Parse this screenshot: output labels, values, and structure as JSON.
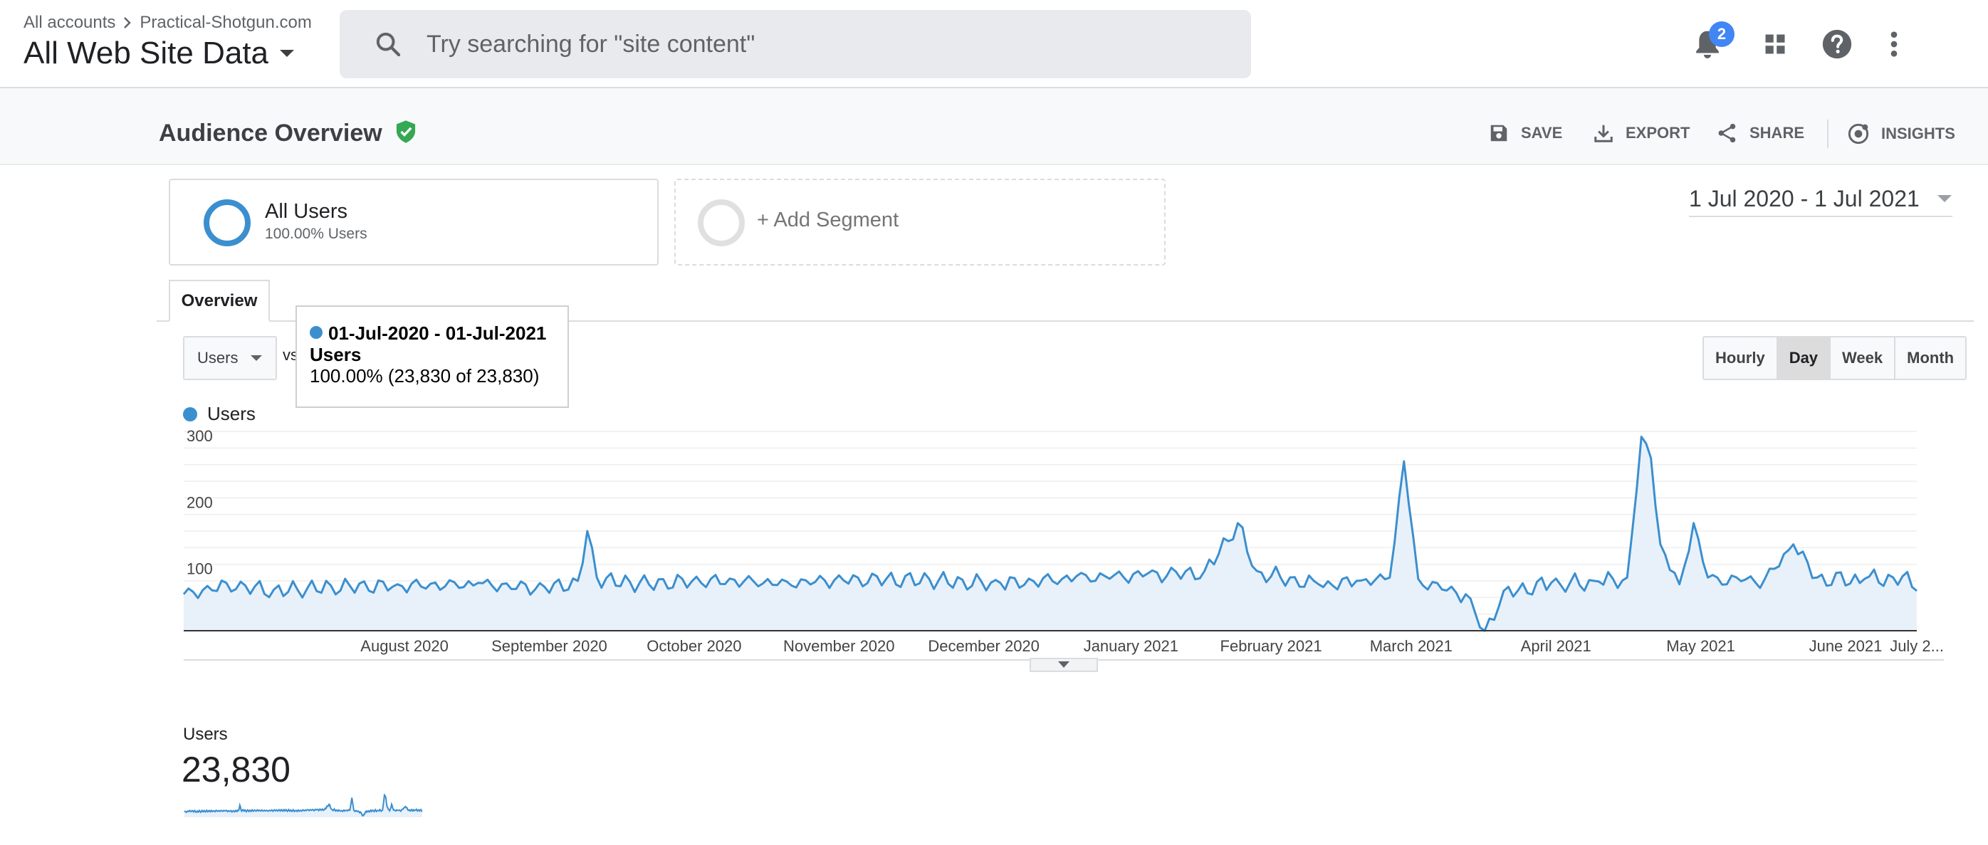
{
  "topbar": {
    "breadcrumb": {
      "account": "All accounts",
      "property": "Practical-Shotgun.com"
    },
    "view": "All Web Site Data",
    "search": {
      "placeholder": "Try searching for \"site content\"",
      "value": ""
    },
    "notifications_count": "2",
    "icons": [
      "bell-icon",
      "apps-grid-icon",
      "help-icon",
      "more-vert-icon"
    ]
  },
  "header": {
    "title": "Audience Overview",
    "actions": {
      "save": "SAVE",
      "export": "EXPORT",
      "share": "SHARE",
      "insights": "INSIGHTS"
    }
  },
  "segments": {
    "primary": {
      "name": "All Users",
      "detail": "100.00% Users"
    },
    "add_label": "+ Add Segment"
  },
  "date_range": "1 Jul 2020 - 1 Jul 2021",
  "tabs": {
    "overview": "Overview"
  },
  "controls": {
    "metric": "Users",
    "vs": "vs",
    "granularity": [
      "Hourly",
      "Day",
      "Week",
      "Month"
    ],
    "active_granularity": "Day"
  },
  "tooltip": {
    "range": "01-Jul-2020 - 01-Jul-2021",
    "metric": "Users",
    "value": "100.00% (23,830 of 23,830)"
  },
  "legend": {
    "series": "Users"
  },
  "scorecard": {
    "label": "Users",
    "value": "23,830"
  },
  "colors": {
    "line": "#3b8fcf",
    "fill": "#e8f1fa",
    "accent": "#4285f4",
    "verified": "#34a853"
  },
  "chart_data": {
    "type": "area",
    "x_start": "2020-07-01",
    "x_end": "2021-07-01",
    "ylim": [
      0,
      300
    ],
    "yticks": [
      100,
      200,
      300
    ],
    "x_tick_labels": [
      "August 2020",
      "September 2020",
      "October 2020",
      "November 2020",
      "December 2020",
      "January 2021",
      "February 2021",
      "March 2021",
      "April 2021",
      "May 2021",
      "June 2021",
      "July 2..."
    ],
    "grid": true,
    "legend": "top-left",
    "series": [
      {
        "name": "Users",
        "key_points": [
          [
            "2020-07-01",
            55
          ],
          [
            "2020-07-10",
            72
          ],
          [
            "2020-07-20",
            62
          ],
          [
            "2020-08-01",
            68
          ],
          [
            "2020-08-15",
            70
          ],
          [
            "2020-09-01",
            72
          ],
          [
            "2020-09-15",
            66
          ],
          [
            "2020-09-22",
            75
          ],
          [
            "2020-09-24",
            150
          ],
          [
            "2020-09-26",
            80
          ],
          [
            "2020-10-05",
            72
          ],
          [
            "2020-10-20",
            78
          ],
          [
            "2020-11-05",
            74
          ],
          [
            "2020-11-20",
            80
          ],
          [
            "2020-12-05",
            78
          ],
          [
            "2020-12-20",
            72
          ],
          [
            "2021-01-05",
            82
          ],
          [
            "2021-01-20",
            86
          ],
          [
            "2021-02-01",
            90
          ],
          [
            "2021-02-08",
            162
          ],
          [
            "2021-02-12",
            90
          ],
          [
            "2021-02-25",
            70
          ],
          [
            "2021-03-05",
            75
          ],
          [
            "2021-03-12",
            80
          ],
          [
            "2021-03-15",
            255
          ],
          [
            "2021-03-18",
            78
          ],
          [
            "2021-03-28",
            55
          ],
          [
            "2021-04-01",
            0
          ],
          [
            "2021-04-05",
            60
          ],
          [
            "2021-04-15",
            72
          ],
          [
            "2021-04-25",
            74
          ],
          [
            "2021-05-01",
            80
          ],
          [
            "2021-05-04",
            292
          ],
          [
            "2021-05-06",
            260
          ],
          [
            "2021-05-08",
            130
          ],
          [
            "2021-05-12",
            70
          ],
          [
            "2021-05-15",
            162
          ],
          [
            "2021-05-18",
            80
          ],
          [
            "2021-05-30",
            78
          ],
          [
            "2021-06-05",
            130
          ],
          [
            "2021-06-10",
            80
          ],
          [
            "2021-06-20",
            78
          ],
          [
            "2021-06-28",
            82
          ],
          [
            "2021-07-01",
            60
          ]
        ]
      }
    ]
  }
}
